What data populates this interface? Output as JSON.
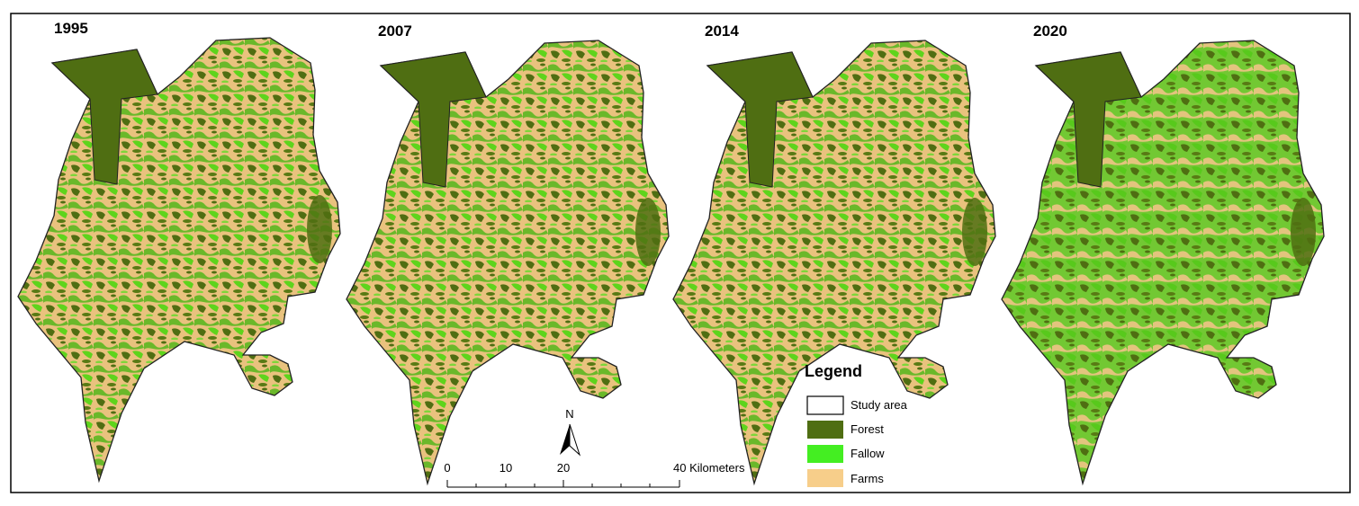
{
  "maps": [
    {
      "year": "1995"
    },
    {
      "year": "2007"
    },
    {
      "year": "2014"
    },
    {
      "year": "2020"
    }
  ],
  "legend": {
    "title": "Legend",
    "items": [
      "Study area",
      "Forest",
      "Fallow",
      "Farms"
    ]
  },
  "north": "N",
  "scale_bar": {
    "labels": [
      "0",
      "10",
      "20",
      "40 Kilometers"
    ]
  }
}
